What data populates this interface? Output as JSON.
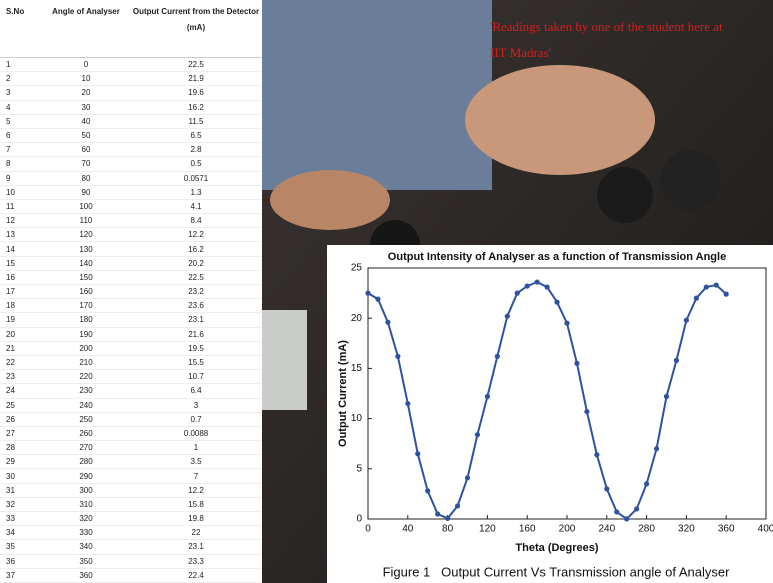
{
  "table": {
    "headers": [
      "S.No",
      "Angle of Analyser",
      "Output Current from the Detector (mA)"
    ],
    "rows": [
      [
        "1",
        "0",
        "22.5"
      ],
      [
        "2",
        "10",
        "21.9"
      ],
      [
        "3",
        "20",
        "19.6"
      ],
      [
        "4",
        "30",
        "16.2"
      ],
      [
        "5",
        "40",
        "11.5"
      ],
      [
        "6",
        "50",
        "6.5"
      ],
      [
        "7",
        "60",
        "2.8"
      ],
      [
        "8",
        "70",
        "0.5"
      ],
      [
        "9",
        "80",
        "0.0571"
      ],
      [
        "10",
        "90",
        "1.3"
      ],
      [
        "11",
        "100",
        "4.1"
      ],
      [
        "12",
        "110",
        "8.4"
      ],
      [
        "13",
        "120",
        "12.2"
      ],
      [
        "14",
        "130",
        "16.2"
      ],
      [
        "15",
        "140",
        "20.2"
      ],
      [
        "16",
        "150",
        "22.5"
      ],
      [
        "17",
        "160",
        "23.2"
      ],
      [
        "18",
        "170",
        "23.6"
      ],
      [
        "19",
        "180",
        "23.1"
      ],
      [
        "20",
        "190",
        "21.6"
      ],
      [
        "21",
        "200",
        "19.5"
      ],
      [
        "22",
        "210",
        "15.5"
      ],
      [
        "23",
        "220",
        "10.7"
      ],
      [
        "24",
        "230",
        "6.4"
      ],
      [
        "25",
        "240",
        "3"
      ],
      [
        "26",
        "250",
        "0.7"
      ],
      [
        "27",
        "260",
        "0.0088"
      ],
      [
        "28",
        "270",
        "1"
      ],
      [
        "29",
        "280",
        "3.5"
      ],
      [
        "30",
        "290",
        "7"
      ],
      [
        "31",
        "300",
        "12.2"
      ],
      [
        "32",
        "310",
        "15.8"
      ],
      [
        "33",
        "320",
        "19.8"
      ],
      [
        "34",
        "330",
        "22"
      ],
      [
        "35",
        "340",
        "23.1"
      ],
      [
        "36",
        "350",
        "23.3"
      ],
      [
        "37",
        "360",
        "22.4"
      ]
    ]
  },
  "overlay_text": "'Readings taken by one of the student here at IIT Madras'",
  "chart_data": {
    "type": "line",
    "title": "Output Intensity of Analyser as a function of Transmission Angle",
    "x_label": "Theta (Degrees)",
    "y_label": "Output Current (mA)",
    "color": "#2f52a0",
    "x": [
      0,
      10,
      20,
      30,
      40,
      50,
      60,
      70,
      80,
      90,
      100,
      110,
      120,
      130,
      140,
      150,
      160,
      170,
      180,
      190,
      200,
      210,
      220,
      230,
      240,
      250,
      260,
      270,
      280,
      290,
      300,
      310,
      320,
      330,
      340,
      350,
      360
    ],
    "values": [
      22.5,
      21.9,
      19.6,
      16.2,
      11.5,
      6.5,
      2.8,
      0.5,
      0.0571,
      1.3,
      4.1,
      8.4,
      12.2,
      16.2,
      20.2,
      22.5,
      23.2,
      23.6,
      23.1,
      21.6,
      19.5,
      15.5,
      10.7,
      6.4,
      3,
      0.7,
      0.0088,
      1,
      3.5,
      7,
      12.2,
      15.8,
      19.8,
      22,
      23.1,
      23.3,
      22.4
    ],
    "xlim": [
      0,
      400
    ],
    "xticks": [
      0,
      40,
      80,
      120,
      160,
      200,
      240,
      280,
      320,
      360,
      400
    ],
    "ylim": [
      0,
      25
    ],
    "yticks": [
      0,
      5,
      10,
      15,
      20,
      25
    ]
  },
  "caption": "Figure 1   Output Current Vs Transmission angle of Analyser"
}
